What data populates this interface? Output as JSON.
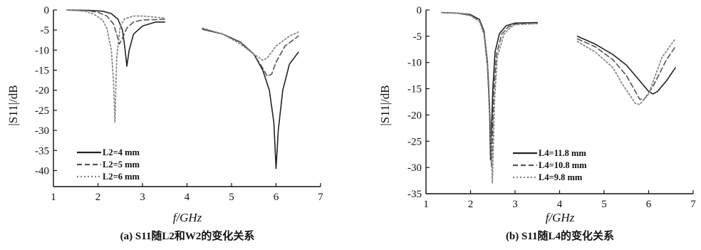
{
  "chart_data": [
    {
      "type": "line",
      "caption": "(a) S11随L2和W2的变化关系",
      "xlabel": "f/GHz",
      "ylabel": "|S11|/dB",
      "xlim": [
        1,
        7
      ],
      "ylim": [
        -44,
        0
      ],
      "xticks": [
        "1",
        "2",
        "3",
        "4",
        "5",
        "6",
        "7"
      ],
      "yticks": [
        "0",
        "-5",
        "-10",
        "-15",
        "-20",
        "-25",
        "-30",
        "-35",
        "-40"
      ],
      "legend_position": "bottom-left",
      "series": [
        {
          "name": "L2=4 mm",
          "style": "solid",
          "color": "#222222",
          "x": [
            1.3,
            1.8,
            2.1,
            2.3,
            2.45,
            2.55,
            2.6,
            2.65,
            2.7,
            2.8,
            3.0,
            3.3,
            3.5,
            4.35,
            4.8,
            5.2,
            5.5,
            5.7,
            5.85,
            5.95,
            6.0,
            6.05,
            6.15,
            6.3,
            6.5
          ],
          "y": [
            0,
            -0.1,
            -0.3,
            -0.9,
            -2.3,
            -5.0,
            -9.0,
            -14.0,
            -10.0,
            -6.0,
            -4.0,
            -3.0,
            -3.0,
            -4.8,
            -6.0,
            -8.0,
            -11.0,
            -15.0,
            -20.0,
            -28.0,
            -39.5,
            -30.0,
            -20.0,
            -13.5,
            -10.5
          ]
        },
        {
          "name": "L2=5 mm",
          "style": "dashed",
          "color": "#555555",
          "x": [
            1.3,
            1.8,
            2.0,
            2.2,
            2.35,
            2.42,
            2.48,
            2.55,
            2.65,
            2.8,
            3.0,
            3.5,
            4.35,
            4.8,
            5.2,
            5.5,
            5.7,
            5.8,
            5.9,
            6.0,
            6.2,
            6.5
          ],
          "y": [
            0,
            -0.2,
            -0.6,
            -1.5,
            -3.5,
            -6.0,
            -8.5,
            -7.0,
            -4.5,
            -3.0,
            -2.5,
            -2.3,
            -4.7,
            -6.0,
            -8.0,
            -11.0,
            -14.5,
            -16.5,
            -16.0,
            -13.0,
            -9.0,
            -6.5
          ]
        },
        {
          "name": "L2=6 mm",
          "style": "dotted",
          "color": "#888888",
          "x": [
            1.3,
            1.7,
            1.9,
            2.1,
            2.2,
            2.3,
            2.35,
            2.38,
            2.42,
            2.5,
            2.6,
            2.8,
            3.0,
            3.5,
            4.35,
            4.8,
            5.2,
            5.5,
            5.7,
            5.8,
            6.0,
            6.3,
            6.5
          ],
          "y": [
            0,
            -0.3,
            -1.0,
            -2.5,
            -4.5,
            -10.0,
            -18.0,
            -28.0,
            -12.0,
            -4.0,
            -2.2,
            -1.5,
            -1.5,
            -2.0,
            -4.5,
            -6.0,
            -8.5,
            -11.0,
            -12.5,
            -12.0,
            -9.0,
            -6.5,
            -5.5
          ]
        }
      ]
    },
    {
      "type": "line",
      "caption": "(b) S11随L4的变化关系",
      "xlabel": "f/GHz",
      "ylabel": "|S11|/dB",
      "xlim": [
        1,
        7
      ],
      "ylim": [
        -35,
        0
      ],
      "xticks": [
        "1",
        "2",
        "3",
        "4",
        "5",
        "6",
        "7"
      ],
      "yticks": [
        "0",
        "-5",
        "-10",
        "-15",
        "-20",
        "-25",
        "-30",
        "-35"
      ],
      "legend_position": "bottom-left",
      "series": [
        {
          "name": "L4=11.8 mm",
          "style": "solid",
          "color": "#222222",
          "x": [
            1.35,
            1.7,
            2.0,
            2.2,
            2.3,
            2.38,
            2.43,
            2.45,
            2.5,
            2.55,
            2.65,
            2.8,
            3.0,
            3.5,
            4.4,
            4.8,
            5.2,
            5.5,
            5.8,
            6.0,
            6.1,
            6.2,
            6.4,
            6.6
          ],
          "y": [
            -0.5,
            -0.6,
            -0.9,
            -1.8,
            -4.0,
            -10.0,
            -20.0,
            -28.5,
            -15.0,
            -8.0,
            -4.5,
            -3.0,
            -2.5,
            -2.4,
            -5.0,
            -6.5,
            -8.5,
            -10.5,
            -13.5,
            -15.5,
            -16.0,
            -15.5,
            -13.5,
            -11.0
          ]
        },
        {
          "name": "L4=10.8 mm",
          "style": "dashed",
          "color": "#555555",
          "x": [
            1.35,
            1.7,
            2.0,
            2.2,
            2.3,
            2.38,
            2.44,
            2.47,
            2.52,
            2.58,
            2.7,
            2.85,
            3.0,
            3.5,
            4.4,
            4.8,
            5.2,
            5.5,
            5.7,
            5.8,
            5.9,
            6.1,
            6.4,
            6.6
          ],
          "y": [
            -0.5,
            -0.6,
            -1.0,
            -2.0,
            -4.3,
            -11.0,
            -21.0,
            -30.0,
            -16.0,
            -8.5,
            -4.6,
            -3.2,
            -2.7,
            -2.5,
            -5.5,
            -7.0,
            -9.5,
            -12.5,
            -15.5,
            -17.0,
            -17.0,
            -14.5,
            -9.5,
            -7.0
          ]
        },
        {
          "name": "L4=9.8 mm",
          "style": "dotted",
          "color": "#888888",
          "x": [
            1.35,
            1.7,
            2.0,
            2.2,
            2.3,
            2.4,
            2.45,
            2.49,
            2.54,
            2.6,
            2.75,
            2.9,
            3.0,
            3.5,
            4.4,
            4.8,
            5.2,
            5.4,
            5.6,
            5.7,
            5.8,
            6.0,
            6.3,
            6.6
          ],
          "y": [
            -0.5,
            -0.6,
            -1.1,
            -2.2,
            -4.6,
            -12.0,
            -22.0,
            -33.0,
            -17.0,
            -9.0,
            -4.6,
            -3.3,
            -2.8,
            -2.6,
            -6.0,
            -8.0,
            -11.0,
            -14.0,
            -16.5,
            -17.8,
            -18.0,
            -16.0,
            -9.0,
            -5.5
          ]
        }
      ]
    }
  ]
}
